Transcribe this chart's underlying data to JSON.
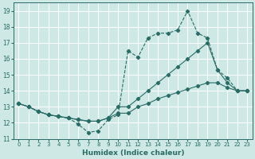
{
  "title": "",
  "xlabel": "Humidex (Indice chaleur)",
  "ylabel": "",
  "xlim": [
    -0.5,
    23.5
  ],
  "ylim": [
    11,
    19.5
  ],
  "yticks": [
    11,
    12,
    13,
    14,
    15,
    16,
    17,
    18,
    19
  ],
  "xticks": [
    0,
    1,
    2,
    3,
    4,
    5,
    6,
    7,
    8,
    9,
    10,
    11,
    12,
    13,
    14,
    15,
    16,
    17,
    18,
    19,
    20,
    21,
    22,
    23
  ],
  "bg_color": "#cde8e5",
  "line_color": "#2a6b65",
  "lines": [
    {
      "x": [
        0,
        1,
        2,
        3,
        4,
        5,
        6,
        7,
        8,
        9,
        10,
        11,
        12,
        13,
        14,
        15,
        16,
        17,
        18,
        19,
        20,
        21,
        22,
        23
      ],
      "y": [
        13.2,
        13.0,
        12.7,
        12.5,
        12.4,
        12.3,
        11.9,
        11.4,
        11.5,
        12.2,
        12.5,
        16.5,
        16.1,
        17.3,
        17.6,
        17.6,
        17.8,
        19.0,
        17.6,
        17.3,
        15.3,
        14.8,
        14.0,
        14.0
      ],
      "style": "--",
      "marker": "D",
      "markersize": 2.2
    },
    {
      "x": [
        0,
        1,
        2,
        3,
        4,
        5,
        6,
        7,
        8,
        9,
        10,
        11,
        12,
        13,
        14,
        15,
        16,
        17,
        18,
        19,
        20,
        21,
        22,
        23
      ],
      "y": [
        13.2,
        13.0,
        12.7,
        12.5,
        12.4,
        12.3,
        12.2,
        12.1,
        12.1,
        12.3,
        13.0,
        13.0,
        13.5,
        14.0,
        14.5,
        15.0,
        15.5,
        16.0,
        16.5,
        17.0,
        15.3,
        14.5,
        14.0,
        14.0
      ],
      "style": "-",
      "marker": "D",
      "markersize": 2.2
    },
    {
      "x": [
        0,
        1,
        2,
        3,
        4,
        5,
        6,
        7,
        8,
        9,
        10,
        11,
        12,
        13,
        14,
        15,
        16,
        17,
        18,
        19,
        20,
        21,
        22,
        23
      ],
      "y": [
        13.2,
        13.0,
        12.7,
        12.5,
        12.4,
        12.3,
        12.2,
        12.1,
        12.1,
        12.3,
        12.6,
        12.6,
        13.0,
        13.2,
        13.5,
        13.7,
        13.9,
        14.1,
        14.3,
        14.5,
        14.5,
        14.2,
        14.0,
        14.0
      ],
      "style": "-",
      "marker": "D",
      "markersize": 2.2
    }
  ]
}
